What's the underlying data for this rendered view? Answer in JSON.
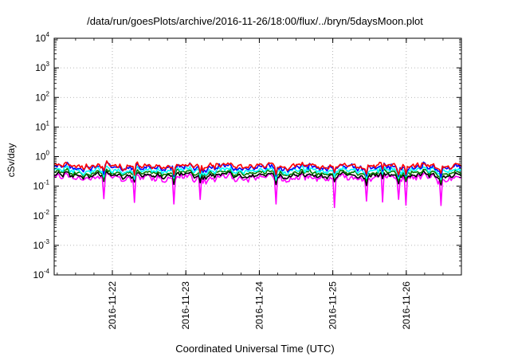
{
  "chart_data": {
    "type": "line",
    "title": "/data/run/goesPlots/archive/2016-11-26/18:00/flux/../bryn/5daysMoon.plot",
    "xlabel": "Coordinated Universal Time (UTC)",
    "ylabel": "cSv/day",
    "yscale": "log",
    "ylim": [
      0.0001,
      10000
    ],
    "y_ticks": [
      {
        "base": "10",
        "exp": "-4",
        "value": 0.0001
      },
      {
        "base": "10",
        "exp": "-3",
        "value": 0.001
      },
      {
        "base": "10",
        "exp": "-2",
        "value": 0.01
      },
      {
        "base": "10",
        "exp": "-1",
        "value": 0.1
      },
      {
        "base": "10",
        "exp": "0",
        "value": 1
      },
      {
        "base": "10",
        "exp": "1",
        "value": 10
      },
      {
        "base": "10",
        "exp": "2",
        "value": 100
      },
      {
        "base": "10",
        "exp": "3",
        "value": 1000
      },
      {
        "base": "10",
        "exp": "4",
        "value": 10000
      }
    ],
    "xlim": [
      "2016-11-21T05:00",
      "2016-11-26T18:00"
    ],
    "x_ticks": [
      "2016-11-22",
      "2016-11-23",
      "2016-11-24",
      "2016-11-25",
      "2016-11-26"
    ],
    "grid": true,
    "series": [
      {
        "color": "#ff00ff",
        "level": 0.19,
        "noise": 0.12,
        "dips": true
      },
      {
        "color": "#000000",
        "level": 0.23,
        "noise": 0.08,
        "dips": false
      },
      {
        "color": "#008000",
        "level": 0.28,
        "noise": 0.09,
        "dips": false
      },
      {
        "color": "#00ffff",
        "level": 0.34,
        "noise": 0.1,
        "dips": false
      },
      {
        "color": "#0000ff",
        "level": 0.43,
        "noise": 0.13,
        "dips": false
      },
      {
        "color": "#ff0000",
        "level": 0.48,
        "noise": 0.13,
        "dips": false
      }
    ]
  }
}
